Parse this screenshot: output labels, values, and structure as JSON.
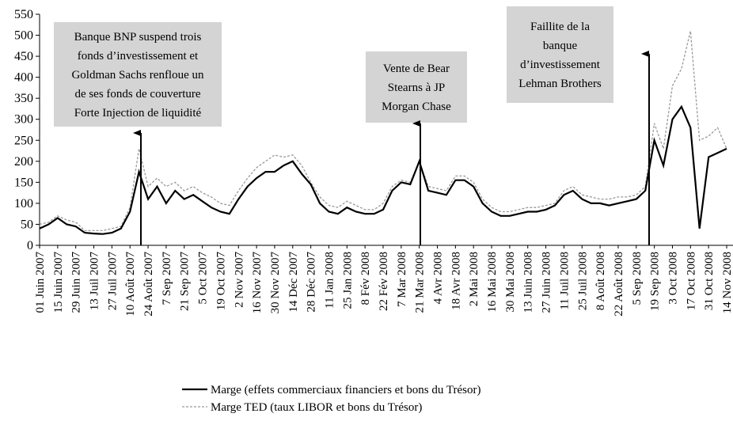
{
  "chart_data": {
    "type": "line",
    "categories": [
      "01 Juin 2007",
      null,
      "15 Juin 2007",
      null,
      "29 Juin 2007",
      null,
      "13 Juil 2007",
      null,
      "27 Juil 2007",
      null,
      "10 Août 2007",
      null,
      "24 Août 2007",
      null,
      "7 Sep 2007",
      null,
      "21 Sep 2007",
      null,
      "5 Oct 2007",
      null,
      "19 Oct 2007",
      null,
      "2 Nov 2007",
      null,
      "16 Nov 2007",
      null,
      "30 Nov 2007",
      null,
      "14 Déc 2007",
      null,
      "28 Déc 2007",
      null,
      "11 Jan 2008",
      null,
      "25 Jan 2008",
      null,
      "8 Fév 2008",
      null,
      "22 Fév 2008",
      null,
      "7 Mar 2008",
      null,
      "21 Mar 2008",
      null,
      "4 Avr 2008",
      null,
      "18 Avr 2008",
      null,
      "2 Mai 2008",
      null,
      "16 Mai 2008",
      null,
      "30 Mai 2008",
      null,
      "13 Juin 2008",
      null,
      "27 Juin 2008",
      null,
      "11 Juil 2008",
      null,
      "25 Juil 2008",
      null,
      "8 Août 2008",
      null,
      "22 Août 2008",
      null,
      "5 Sep 2008",
      null,
      "19 Sep 2008",
      null,
      "3 Oct 2008",
      null,
      "17 Oct 2008",
      null,
      "31 Oct 2008",
      null,
      "14 Nov 2008"
    ],
    "series": [
      {
        "name": "Marge (effets commerciaux financiers et bons du Trésor)",
        "color": "#000000",
        "dashed": false,
        "values": [
          40,
          50,
          65,
          50,
          45,
          30,
          28,
          27,
          30,
          40,
          80,
          175,
          110,
          140,
          100,
          130,
          110,
          120,
          105,
          90,
          80,
          75,
          110,
          140,
          160,
          175,
          175,
          190,
          200,
          170,
          145,
          100,
          80,
          75,
          90,
          80,
          75,
          75,
          85,
          130,
          150,
          145,
          200,
          130,
          125,
          120,
          155,
          155,
          140,
          100,
          80,
          70,
          70,
          75,
          80,
          80,
          85,
          95,
          120,
          130,
          110,
          100,
          100,
          95,
          100,
          105,
          110,
          130,
          250,
          190,
          300,
          330,
          280,
          40,
          210,
          220,
          230
        ]
      },
      {
        "name": "Marge TED (taux LIBOR et bons du Trésor)",
        "color": "#999999",
        "dashed": true,
        "values": [
          50,
          55,
          70,
          60,
          55,
          35,
          35,
          35,
          40,
          45,
          90,
          230,
          140,
          160,
          140,
          150,
          130,
          140,
          125,
          115,
          100,
          95,
          130,
          160,
          185,
          200,
          215,
          210,
          215,
          190,
          150,
          115,
          95,
          90,
          105,
          95,
          85,
          85,
          100,
          140,
          155,
          150,
          200,
          140,
          135,
          130,
          165,
          165,
          150,
          110,
          90,
          80,
          80,
          85,
          90,
          90,
          95,
          100,
          130,
          140,
          120,
          115,
          110,
          110,
          115,
          115,
          120,
          140,
          290,
          230,
          380,
          420,
          510,
          250,
          260,
          280,
          230
        ]
      }
    ],
    "ylim": [
      0,
      550
    ],
    "yticks": [
      0,
      50,
      100,
      150,
      200,
      250,
      300,
      350,
      400,
      450,
      500,
      550
    ],
    "annotations": [
      {
        "lines": [
          "Banque BNP suspend trois",
          "fonds d’investissement et",
          "Goldman Sachs renfloue un",
          "de ses fonds de couverture",
          "Forte Injection de liquidité"
        ]
      },
      {
        "lines": [
          "Vente de Bear",
          "Stearns à JP",
          "Morgan Chase"
        ]
      },
      {
        "lines": [
          "Faillite de la",
          "banque",
          "d’investissement",
          "Lehman Brothers"
        ]
      }
    ]
  }
}
